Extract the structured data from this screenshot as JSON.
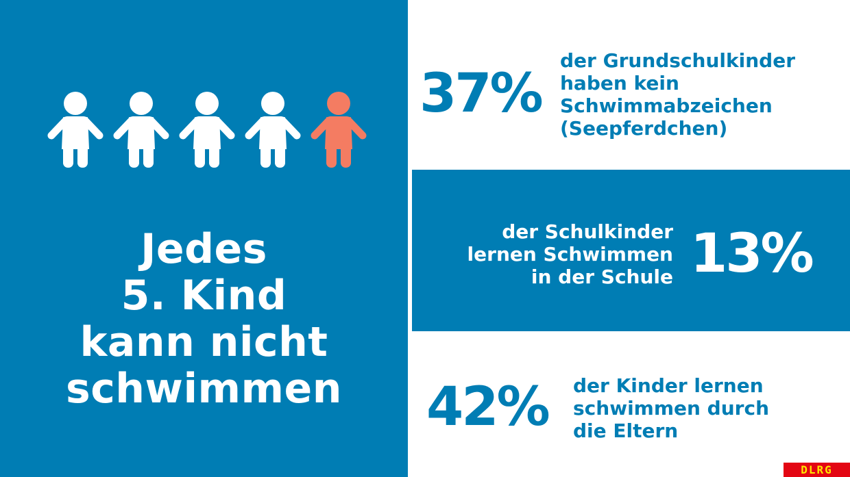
{
  "left_panel": {
    "figures": {
      "total": 5,
      "highlighted": 1,
      "icon": "child-icon",
      "color_default": "#ffffff",
      "color_highlight": "#f47c62"
    },
    "headline": [
      "Jedes",
      "5. Kind",
      "kann nicht",
      "schwimmen"
    ]
  },
  "stats": [
    {
      "value": "37%",
      "lines": [
        "der Grundschulkinder",
        "haben kein",
        "Schwimmabzeichen",
        "(Seepferdchen)"
      ]
    },
    {
      "value": "13%",
      "lines": [
        "der Schulkinder",
        "lernen Schwimmen",
        "in der Schule"
      ]
    },
    {
      "value": "42%",
      "lines": [
        "der Kinder lernen",
        "schwimmen durch",
        "die Eltern"
      ]
    }
  ],
  "colors": {
    "brand_blue": "#007db4",
    "highlight": "#f47c62",
    "logo_red": "#e30613",
    "logo_yellow": "#ffe600"
  },
  "logo": "DLRG"
}
